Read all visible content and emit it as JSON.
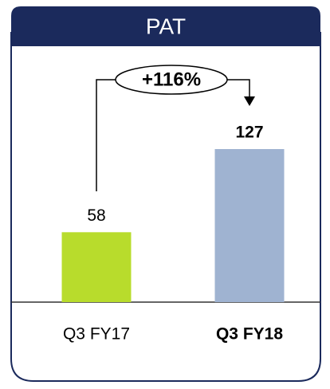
{
  "chart_data": {
    "type": "bar",
    "title": "PAT",
    "categories": [
      "Q3 FY17",
      "Q3 FY18"
    ],
    "values": [
      58,
      127
    ],
    "colors": [
      "#b8dc2c",
      "#9fb3d1"
    ],
    "annotation": "+116%"
  }
}
